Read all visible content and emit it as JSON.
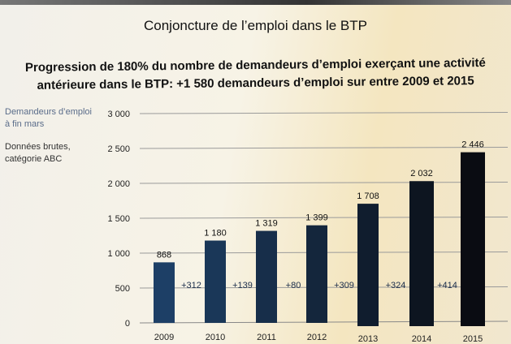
{
  "title": "Conjoncture de l’emploi dans le  BTP",
  "subtitle_line1": "Progression de 180% du nombre de demandeurs d’emploi exerçant une activité",
  "subtitle_line2": "antérieure dans le BTP:  +1 580 demandeurs d’emploi sur entre 2009 et 2015",
  "notes": {
    "line1": "Demandeurs d’emploi",
    "line2": "à fin mars",
    "line3": "Données brutes,",
    "line4": "catégorie ABC"
  },
  "chart_data": {
    "type": "bar",
    "categories": [
      "2009",
      "2010",
      "2011",
      "2012",
      "2013",
      "2014",
      "2015"
    ],
    "values": [
      868,
      1180,
      1319,
      1399,
      1708,
      2032,
      2446
    ],
    "value_labels": [
      "868",
      "1 180",
      "1 319",
      "1 399",
      "1 708",
      "2 032",
      "2 446"
    ],
    "increments": [
      "+312",
      "+139",
      "+80",
      "+309",
      "+324",
      "+414"
    ],
    "ylim": [
      0,
      3000
    ],
    "yticks": [
      0,
      500,
      1000,
      1500,
      2000,
      2500,
      3000
    ],
    "ytick_labels": [
      "0",
      "500",
      "1 000",
      "1 500",
      "2 000",
      "2 500",
      "3 000"
    ],
    "grid": true,
    "colors": {
      "start": "#1d3f66",
      "end": "#0a0c12"
    }
  }
}
